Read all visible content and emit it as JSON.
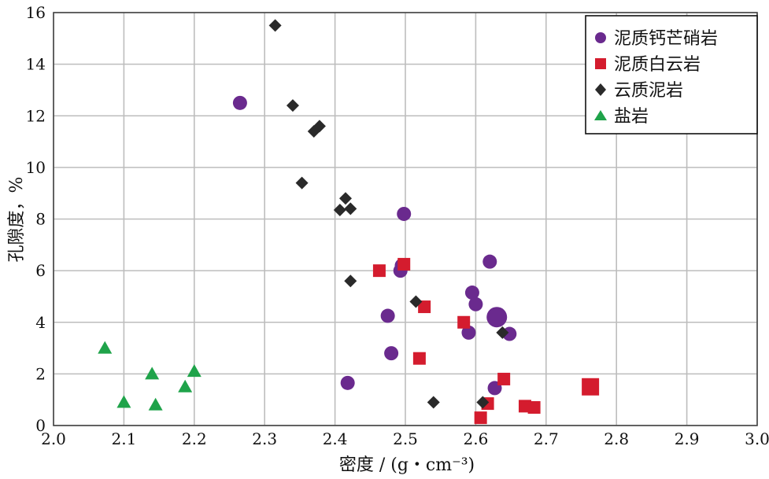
{
  "chart_data": {
    "type": "scatter",
    "title": "",
    "xlabel": "密度 / (g・cm⁻³)",
    "ylabel": "孔隙度，%",
    "xlim": [
      2.0,
      3.0
    ],
    "ylim": [
      0,
      16
    ],
    "x_ticks": [
      "2.0",
      "2.1",
      "2.2",
      "2.3",
      "2.4",
      "2.5",
      "2.6",
      "2.7",
      "2.8",
      "2.9",
      "3.0"
    ],
    "y_ticks": [
      "0",
      "2",
      "4",
      "6",
      "8",
      "10",
      "12",
      "14",
      "16"
    ],
    "grid": true,
    "legend_position": "top-right",
    "series": [
      {
        "name": "泥质钙芒硝岩",
        "marker": "circle",
        "color": "#6a2a8e",
        "points": [
          [
            2.265,
            12.5
          ],
          [
            2.498,
            8.2
          ],
          [
            2.62,
            6.35
          ],
          [
            2.493,
            6.0
          ],
          [
            2.495,
            6.2
          ],
          [
            2.595,
            5.15
          ],
          [
            2.6,
            4.7
          ],
          [
            2.475,
            4.25
          ],
          [
            2.63,
            4.2
          ],
          [
            2.59,
            3.6
          ],
          [
            2.648,
            3.55
          ],
          [
            2.48,
            2.8
          ],
          [
            2.418,
            1.65
          ],
          [
            2.627,
            1.45
          ]
        ],
        "big_points": [
          [
            2.63,
            4.2
          ]
        ]
      },
      {
        "name": "泥质白云岩",
        "marker": "square",
        "color": "#d41c2e",
        "points": [
          [
            2.463,
            6.0
          ],
          [
            2.498,
            6.25
          ],
          [
            2.527,
            4.6
          ],
          [
            2.583,
            4.0
          ],
          [
            2.52,
            2.6
          ],
          [
            2.64,
            1.8
          ],
          [
            2.763,
            1.5
          ],
          [
            2.617,
            0.85
          ],
          [
            2.607,
            0.3
          ],
          [
            2.67,
            0.75
          ],
          [
            2.683,
            0.7
          ]
        ],
        "big_points": [
          [
            2.763,
            1.5
          ]
        ]
      },
      {
        "name": "云质泥岩",
        "marker": "diamond",
        "color": "#2a2a2a",
        "points": [
          [
            2.315,
            15.5
          ],
          [
            2.34,
            12.4
          ],
          [
            2.378,
            11.6
          ],
          [
            2.37,
            11.4
          ],
          [
            2.353,
            9.4
          ],
          [
            2.415,
            8.8
          ],
          [
            2.407,
            8.35
          ],
          [
            2.422,
            8.4
          ],
          [
            2.422,
            5.6
          ],
          [
            2.515,
            4.8
          ],
          [
            2.638,
            3.6
          ],
          [
            2.54,
            0.9
          ],
          [
            2.61,
            0.9
          ]
        ]
      },
      {
        "name": "盐岩",
        "marker": "triangle",
        "color": "#1fa34a",
        "points": [
          [
            2.073,
            3.0
          ],
          [
            2.14,
            2.0
          ],
          [
            2.2,
            2.1
          ],
          [
            2.187,
            1.5
          ],
          [
            2.1,
            0.9
          ],
          [
            2.145,
            0.8
          ]
        ]
      }
    ]
  }
}
